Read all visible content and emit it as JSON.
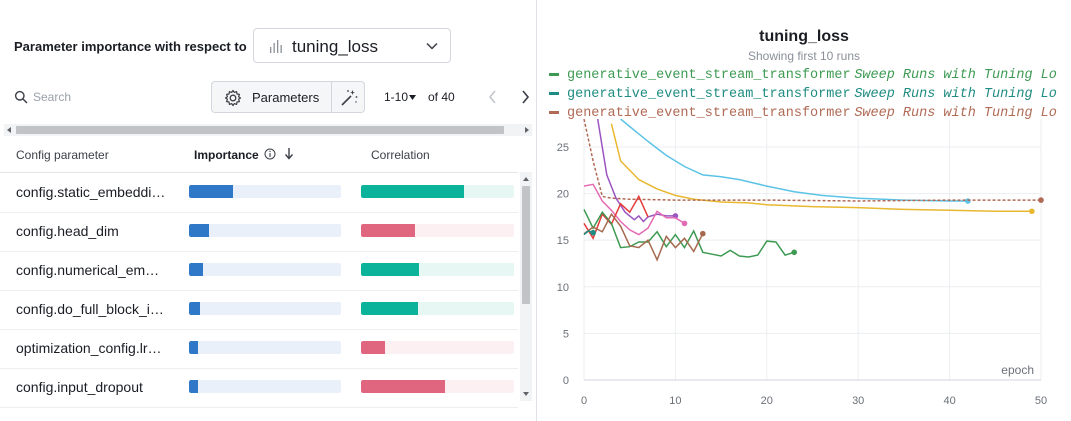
{
  "param_panel": {
    "heading": "Parameter importance with respect to",
    "metric": "tuning_loss",
    "search_placeholder": "Search",
    "parameters_button": "Parameters",
    "page_range": "1-10",
    "page_total": "of 40",
    "columns": {
      "config": "Config parameter",
      "importance": "Importance",
      "correlation": "Correlation"
    },
    "rows": [
      {
        "name": "config.static_embedding_mode",
        "importance": 0.29,
        "correlation": 0.67,
        "sign": "positive"
      },
      {
        "name": "config.head_dim",
        "importance": 0.13,
        "correlation": 0.35,
        "sign": "negative"
      },
      {
        "name": "config.numerical_embedding_mode",
        "importance": 0.09,
        "correlation": 0.38,
        "sign": "positive"
      },
      {
        "name": "config.do_full_block_in_seq_attention",
        "importance": 0.07,
        "correlation": 0.37,
        "sign": "positive"
      },
      {
        "name": "optimization_config.lr_frac_warmup_steps",
        "importance": 0.06,
        "correlation": 0.16,
        "sign": "negative"
      },
      {
        "name": "config.input_dropout",
        "importance": 0.06,
        "correlation": 0.55,
        "sign": "negative"
      }
    ],
    "colors": {
      "importance": "#2f78c8",
      "positive": "#0bb39a",
      "negative": "#e0667f"
    }
  },
  "chart_panel": {
    "title": "tuning_loss",
    "subtitle": "Showing first 10 runs",
    "legend": [
      {
        "run": "generative_event_stream_transformer",
        "sweep": "Sweep Runs with Tuning Lo",
        "color": "#3d9a52"
      },
      {
        "run": "generative_event_stream_transformer",
        "sweep": "Sweep Runs with Tuning Lo",
        "color": "#1f8c82"
      },
      {
        "run": "generative_event_stream_transformer",
        "sweep": "Sweep Runs with Tuning Lo",
        "color": "#b06a55"
      }
    ]
  },
  "chart_data": {
    "type": "line",
    "title": "tuning_loss",
    "subtitle": "Showing first 10 runs",
    "xlabel": "epoch",
    "ylabel": "",
    "xlim": [
      0,
      50
    ],
    "ylim": [
      0,
      28
    ],
    "xticks": [
      0,
      10,
      20,
      30,
      40,
      50
    ],
    "yticks": [
      0,
      5,
      10,
      15,
      20,
      25
    ],
    "grid": true,
    "series": [
      {
        "color": "#5bc3e6",
        "dashed": false,
        "end_dot": true,
        "x": [
          4,
          5,
          7,
          9,
          11,
          13,
          15,
          17,
          20,
          23,
          26,
          30,
          35,
          40,
          42
        ],
        "y": [
          28,
          27.2,
          25.6,
          24.1,
          22.9,
          22.0,
          21.8,
          21.5,
          20.8,
          20.2,
          19.8,
          19.5,
          19.3,
          19.2,
          19.2
        ]
      },
      {
        "color": "#e8b830",
        "dashed": false,
        "end_dot": true,
        "x": [
          3,
          4,
          6,
          8,
          10,
          12,
          15,
          18,
          20,
          25,
          30,
          35,
          40,
          45,
          49
        ],
        "y": [
          27.5,
          23.5,
          21.5,
          20.5,
          19.8,
          19.4,
          19.1,
          19.0,
          18.8,
          18.6,
          18.5,
          18.3,
          18.2,
          18.1,
          18.1
        ]
      },
      {
        "color": "#b06a55",
        "dashed": true,
        "end_dot": true,
        "x": [
          0,
          1,
          2,
          3,
          5,
          10,
          20,
          30,
          40,
          50
        ],
        "y": [
          28,
          23.5,
          19.7,
          19.5,
          19.4,
          19.3,
          19.3,
          19.2,
          19.3,
          19.3
        ]
      },
      {
        "color": "#9b55c0",
        "dashed": false,
        "end_dot": true,
        "x": [
          1.5,
          2.5,
          3.5,
          4.5,
          5.5,
          6,
          6.5,
          7,
          8,
          9,
          10
        ],
        "y": [
          28,
          22.0,
          19.5,
          18.0,
          17.2,
          17.6,
          17.0,
          17.5,
          17.8,
          17.6,
          17.6
        ]
      },
      {
        "color": "#e46bb3",
        "dashed": false,
        "end_dot": true,
        "x": [
          0,
          1,
          2,
          3,
          4,
          5,
          6,
          7,
          8,
          9,
          10,
          11
        ],
        "y": [
          20.8,
          21.0,
          19.2,
          18.2,
          17.0,
          16.1,
          15.6,
          16.3,
          18.1,
          17.4,
          17.4,
          16.8
        ]
      },
      {
        "color": "#e63b3b",
        "dashed": false,
        "end_dot": false,
        "x": [
          0,
          1,
          2,
          3,
          4,
          5,
          6,
          7
        ],
        "y": [
          16.8,
          15.2,
          17.8,
          16.7,
          18.9,
          18.0,
          19.7,
          17.5
        ]
      },
      {
        "color": "#3d9a52",
        "dashed": false,
        "end_dot": true,
        "x": [
          0,
          1,
          2,
          3,
          4,
          5,
          6,
          7,
          8,
          9,
          10,
          11,
          12,
          13,
          14,
          15,
          16,
          17,
          18,
          19,
          20,
          21,
          22,
          23
        ],
        "y": [
          18.3,
          16.3,
          18.0,
          16.8,
          14.2,
          14.3,
          14.8,
          14.8,
          15.9,
          14.3,
          15.6,
          14.2,
          16.0,
          13.7,
          13.5,
          13.3,
          13.9,
          13.3,
          13.2,
          13.4,
          14.9,
          14.8,
          13.4,
          13.7
        ]
      },
      {
        "color": "#a56a4e",
        "dashed": false,
        "end_dot": true,
        "x": [
          0,
          1,
          2,
          3,
          4,
          5,
          6,
          7,
          8,
          9,
          10,
          11,
          12,
          13
        ],
        "y": [
          15.7,
          16.4,
          15.9,
          17.8,
          16.5,
          14.4,
          14.2,
          15.0,
          12.9,
          15.4,
          14.2,
          15.2,
          13.8,
          15.7
        ]
      },
      {
        "color": "#1f8c82",
        "dashed": false,
        "end_dot": true,
        "x": [
          0,
          0.5,
          1
        ],
        "y": [
          15.6,
          16.0,
          15.8
        ]
      }
    ]
  }
}
